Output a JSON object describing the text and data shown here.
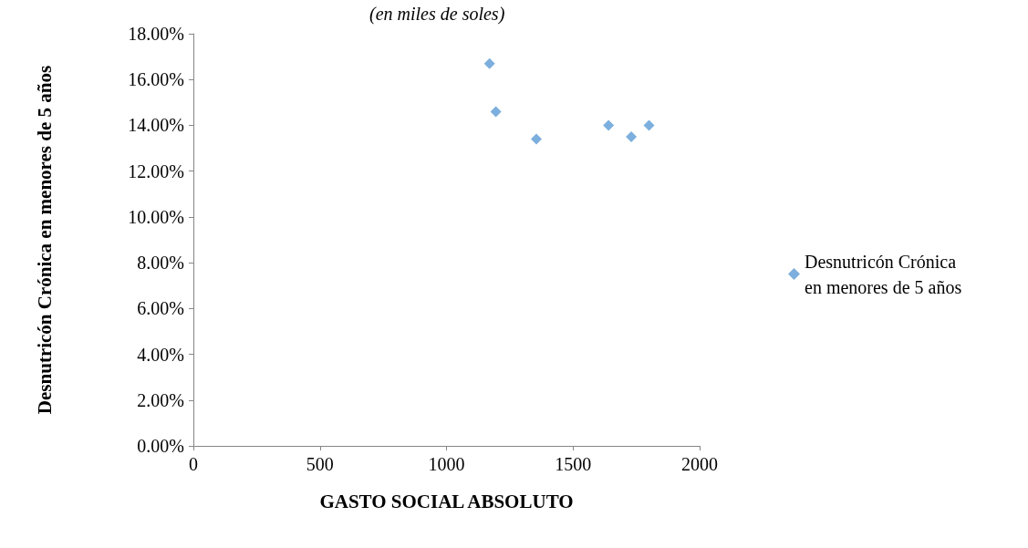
{
  "chart_data": {
    "type": "scatter",
    "subtitle": "(en miles de soles)",
    "xlabel": "GASTO SOCIAL ABSOLUTO",
    "ylabel": "Desnutricón Crónica en menores de 5 años",
    "x": [
      1170,
      1195,
      1355,
      1640,
      1730,
      1800
    ],
    "series": [
      {
        "name": "Desnutricón Crónica en menores de 5 años",
        "color": "#5b9bd5",
        "values": [
          16.7,
          14.6,
          13.4,
          14.0,
          13.5,
          14.0
        ]
      }
    ],
    "xlim": [
      0,
      2000
    ],
    "xticks": [
      0,
      500,
      1000,
      1500,
      2000
    ],
    "ylim": [
      0,
      18
    ],
    "yticks": [
      {
        "value": 0,
        "label": "0.00%"
      },
      {
        "value": 2,
        "label": "2.00%"
      },
      {
        "value": 4,
        "label": "4.00%"
      },
      {
        "value": 6,
        "label": "6.00%"
      },
      {
        "value": 8,
        "label": "8.00%"
      },
      {
        "value": 10,
        "label": "10.00%"
      },
      {
        "value": 12,
        "label": "12.00%"
      },
      {
        "value": 14,
        "label": "14.00%"
      },
      {
        "value": 16,
        "label": "16.00%"
      },
      {
        "value": 18,
        "label": "18.00%"
      }
    ],
    "grid": false,
    "legend": "right",
    "marker": "diamond"
  }
}
